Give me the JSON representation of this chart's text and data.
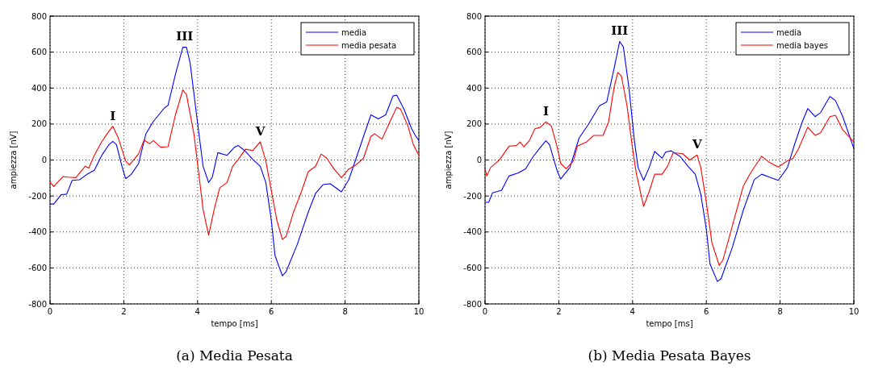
{
  "chart_data": [
    {
      "type": "line",
      "title": "(a) Media Pesata",
      "xlabel": "tempo [ms]",
      "ylabel": "ampiezza [nV]",
      "xlim": [
        0,
        10
      ],
      "xticks": [
        0,
        2,
        4,
        6,
        8,
        10
      ],
      "ylim": [
        -800,
        800
      ],
      "yticks": [
        -800,
        -600,
        -400,
        -200,
        0,
        200,
        400,
        600,
        800
      ],
      "grid": true,
      "legend": "top right",
      "annotations": [
        {
          "text": "I",
          "x": 1.7,
          "y": 188
        },
        {
          "text": "III",
          "x": 3.65,
          "y": 630
        },
        {
          "text": "V",
          "x": 5.7,
          "y": 101
        }
      ],
      "series": [
        {
          "name": "media",
          "color": "#0000ff",
          "x": [
            0,
            0.1,
            0.3,
            0.45,
            0.6,
            0.8,
            1.0,
            1.2,
            1.4,
            1.6,
            1.7,
            1.8,
            1.95,
            2.05,
            2.2,
            2.4,
            2.6,
            2.8,
            3.1,
            3.2,
            3.4,
            3.6,
            3.7,
            3.8,
            4.0,
            4.15,
            4.3,
            4.4,
            4.55,
            4.8,
            5.0,
            5.1,
            5.3,
            5.5,
            5.7,
            5.85,
            6.0,
            6.1,
            6.3,
            6.4,
            6.7,
            7.0,
            7.2,
            7.4,
            7.6,
            7.9,
            8.1,
            8.3,
            8.5,
            8.7,
            8.9,
            9.1,
            9.3,
            9.4,
            9.6,
            9.8,
            9.9,
            10
          ],
          "values": [
            -245,
            -245,
            -193,
            -190,
            -113,
            -110,
            -80,
            -57,
            25,
            86,
            104,
            86,
            -35,
            -104,
            -80,
            -20,
            146,
            214,
            289,
            304,
            477,
            627,
            627,
            537,
            206,
            -35,
            -125,
            -95,
            41,
            26,
            71,
            81,
            48,
            3,
            -35,
            -125,
            -335,
            -531,
            -644,
            -621,
            -471,
            -290,
            -185,
            -137,
            -132,
            -177,
            -110,
            10,
            131,
            251,
            229,
            251,
            356,
            361,
            281,
            176,
            138,
            108
          ]
        },
        {
          "name": "media pesata",
          "color": "#ff0000",
          "x": [
            0,
            0.1,
            0.35,
            0.5,
            0.7,
            0.95,
            1.05,
            1.2,
            1.4,
            1.55,
            1.7,
            1.85,
            2.05,
            2.15,
            2.4,
            2.55,
            2.7,
            2.8,
            3.0,
            3.2,
            3.4,
            3.6,
            3.7,
            3.9,
            4.0,
            4.15,
            4.3,
            4.45,
            4.6,
            4.8,
            4.95,
            5.1,
            5.3,
            5.5,
            5.7,
            5.85,
            6.0,
            6.15,
            6.3,
            6.4,
            6.6,
            6.8,
            7.0,
            7.2,
            7.35,
            7.5,
            7.7,
            7.9,
            8.1,
            8.3,
            8.5,
            8.7,
            8.8,
            9.0,
            9.2,
            9.4,
            9.5,
            9.7,
            9.85,
            10
          ],
          "values": [
            -122,
            -147,
            -92,
            -95,
            -98,
            -35,
            -45,
            26,
            101,
            146,
            188,
            123,
            -5,
            -27,
            33,
            111,
            90,
            108,
            71,
            74,
            251,
            390,
            364,
            146,
            -20,
            -275,
            -418,
            -275,
            -155,
            -125,
            -35,
            3,
            60,
            53,
            101,
            -5,
            -170,
            -335,
            -441,
            -426,
            -290,
            -185,
            -65,
            -35,
            33,
            11,
            -50,
            -98,
            -50,
            -27,
            11,
            131,
            146,
            116,
            206,
            293,
            284,
            191,
            86,
            26
          ]
        }
      ]
    },
    {
      "type": "line",
      "title": "(b) Media Pesata Bayes",
      "xlabel": "tempo [ms]",
      "ylabel": "ampiezza [nV]",
      "xlim": [
        0,
        10
      ],
      "xticks": [
        0,
        2,
        4,
        6,
        8,
        10
      ],
      "ylim": [
        -800,
        800
      ],
      "yticks": [
        -800,
        -600,
        -400,
        -200,
        0,
        200,
        400,
        600,
        800
      ],
      "grid": true,
      "legend": "top right",
      "annotations": [
        {
          "text": "I",
          "x": 1.65,
          "y": 212
        },
        {
          "text": "III",
          "x": 3.65,
          "y": 659
        },
        {
          "text": "V",
          "x": 5.75,
          "y": 28
        }
      ],
      "series": [
        {
          "name": "media",
          "color": "#0000ff",
          "x": [
            0,
            0.1,
            0.2,
            0.45,
            0.65,
            0.9,
            1.1,
            1.3,
            1.5,
            1.65,
            1.75,
            1.95,
            2.05,
            2.3,
            2.55,
            2.8,
            3.1,
            3.3,
            3.5,
            3.65,
            3.75,
            3.9,
            4.05,
            4.15,
            4.3,
            4.45,
            4.6,
            4.8,
            4.9,
            5.05,
            5.3,
            5.5,
            5.7,
            5.85,
            6.0,
            6.1,
            6.3,
            6.4,
            6.7,
            7.0,
            7.3,
            7.5,
            7.7,
            7.95,
            8.2,
            8.4,
            8.6,
            8.75,
            8.95,
            9.1,
            9.35,
            9.5,
            9.7,
            10
          ],
          "values": [
            -235,
            -235,
            -183,
            -168,
            -89,
            -72,
            -49,
            18,
            70,
            107,
            85,
            -57,
            -106,
            -42,
            122,
            197,
            301,
            323,
            510,
            659,
            629,
            405,
            107,
            -42,
            -113,
            -42,
            48,
            10,
            45,
            51,
            18,
            -34,
            -79,
            -191,
            -384,
            -578,
            -675,
            -660,
            -489,
            -280,
            -109,
            -79,
            -94,
            -113,
            -42,
            92,
            212,
            286,
            241,
            264,
            353,
            331,
            241,
            63
          ]
        },
        {
          "name": "media bayes",
          "color": "#ff0000",
          "x": [
            0,
            0.05,
            0.15,
            0.4,
            0.65,
            0.85,
            0.95,
            1.05,
            1.2,
            1.35,
            1.5,
            1.65,
            1.8,
            1.95,
            2.05,
            2.2,
            2.4,
            2.5,
            2.75,
            2.95,
            3.2,
            3.35,
            3.5,
            3.6,
            3.7,
            3.85,
            4.0,
            4.1,
            4.3,
            4.45,
            4.6,
            4.8,
            4.95,
            5.1,
            5.35,
            5.55,
            5.75,
            5.85,
            6.0,
            6.15,
            6.35,
            6.45,
            6.7,
            7.0,
            7.2,
            7.5,
            7.7,
            7.95,
            8.2,
            8.35,
            8.5,
            8.75,
            8.95,
            9.1,
            9.35,
            9.5,
            9.7,
            10
          ],
          "values": [
            -49,
            -89,
            -42,
            3,
            77,
            80,
            100,
            73,
            107,
            174,
            182,
            212,
            189,
            77,
            -19,
            -49,
            -4,
            77,
            100,
            137,
            137,
            212,
            405,
            487,
            465,
            301,
            63,
            -72,
            -258,
            -176,
            -79,
            -79,
            -34,
            40,
            36,
            0,
            28,
            -42,
            -235,
            -459,
            -586,
            -556,
            -370,
            -146,
            -72,
            21,
            -12,
            -39,
            -4,
            10,
            63,
            182,
            137,
            152,
            241,
            249,
            167,
            100
          ]
        }
      ]
    }
  ]
}
